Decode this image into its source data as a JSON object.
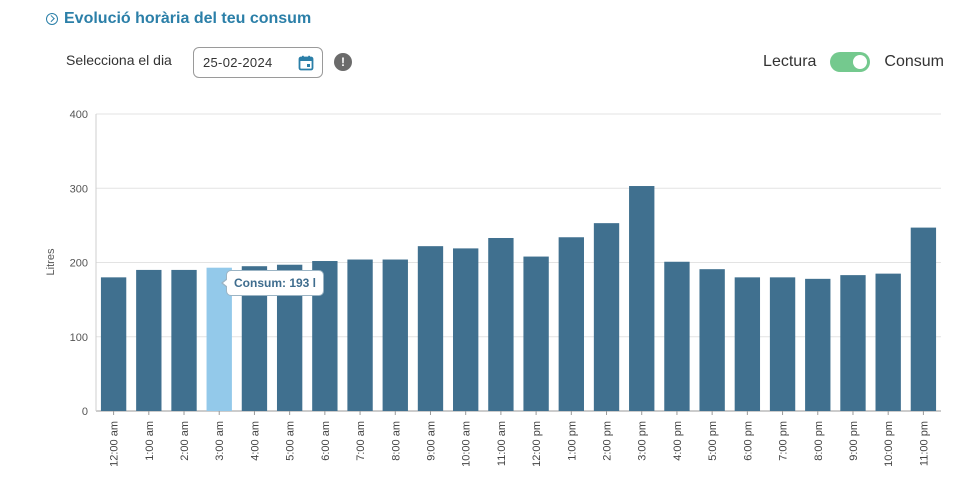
{
  "header": {
    "title": "Evolució horària del teu consum"
  },
  "controls": {
    "day_label": "Selecciona el dia",
    "date_value": "25-02-2024",
    "toggle_left_label": "Lectura",
    "toggle_right_label": "Consum",
    "toggle_on": true,
    "toggle_color": "#74c98e"
  },
  "tooltip": {
    "text": "Consum: 193 l"
  },
  "colors": {
    "accent": "#2b7fa8",
    "bar": "#40708f",
    "bar_highlight": "#93c9ea"
  },
  "chart_data": {
    "type": "bar",
    "ylabel": "Litres",
    "xlabel": "",
    "ylim": [
      0,
      400
    ],
    "yticks": [
      0,
      100,
      200,
      300,
      400
    ],
    "grid": true,
    "highlight_index": 3,
    "categories": [
      "12:00 am",
      "1:00 am",
      "2:00 am",
      "3:00 am",
      "4:00 am",
      "5:00 am",
      "6:00 am",
      "7:00 am",
      "8:00 am",
      "9:00 am",
      "10:00 am",
      "11:00 am",
      "12:00 pm",
      "1:00 pm",
      "2:00 pm",
      "3:00 pm",
      "4:00 pm",
      "5:00 pm",
      "6:00 pm",
      "7:00 pm",
      "8:00 pm",
      "9:00 pm",
      "10:00 pm",
      "11:00 pm"
    ],
    "values": [
      180,
      190,
      190,
      193,
      195,
      197,
      202,
      204,
      204,
      222,
      219,
      233,
      208,
      234,
      253,
      303,
      201,
      191,
      180,
      180,
      178,
      183,
      185,
      247
    ]
  }
}
